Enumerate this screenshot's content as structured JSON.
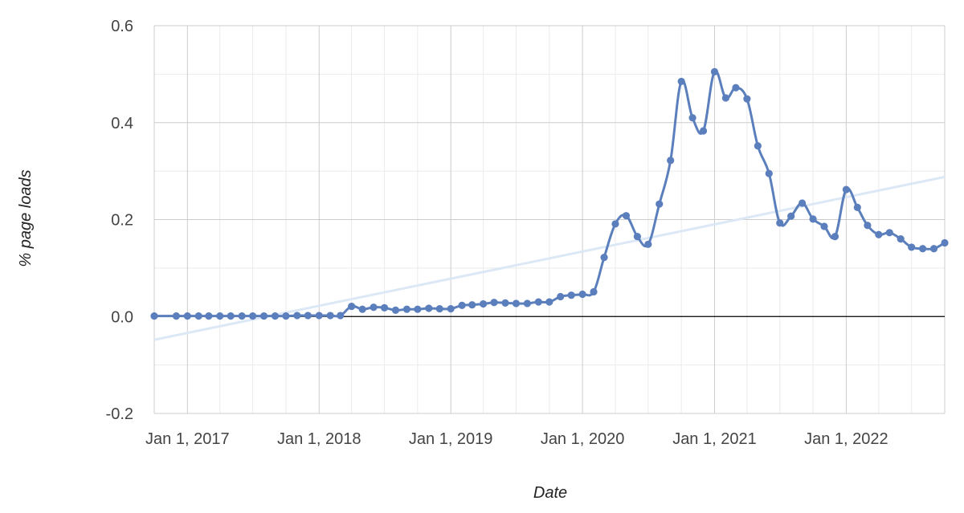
{
  "chart_data": {
    "type": "line",
    "xlabel": "Date",
    "ylabel": "% page loads",
    "xlim": [
      "2016-10-01",
      "2022-10-01"
    ],
    "ylim": [
      -0.2,
      0.6
    ],
    "grid": true,
    "legend": "none",
    "colors": {
      "series": "#5b7fbc",
      "trendline": "#dce8f5",
      "zero_line": "#000000",
      "major_grid": "#cccccc",
      "minor_grid": "#ebebeb"
    },
    "y_ticks": [
      {
        "value": -0.2,
        "label": "-0.2"
      },
      {
        "value": 0.0,
        "label": "0.0"
      },
      {
        "value": 0.2,
        "label": "0.2"
      },
      {
        "value": 0.4,
        "label": "0.4"
      },
      {
        "value": 0.6,
        "label": "0.6"
      }
    ],
    "x_ticks": [
      {
        "value": "2017-01-01",
        "label": "Jan 1, 2017"
      },
      {
        "value": "2018-01-01",
        "label": "Jan 1, 2018"
      },
      {
        "value": "2019-01-01",
        "label": "Jan 1, 2019"
      },
      {
        "value": "2020-01-01",
        "label": "Jan 1, 2020"
      },
      {
        "value": "2021-01-01",
        "label": "Jan 1, 2021"
      },
      {
        "value": "2022-01-01",
        "label": "Jan 1, 2022"
      }
    ],
    "trendline": {
      "x": [
        "2016-10-01",
        "2022-10-01"
      ],
      "y": [
        -0.048,
        0.288
      ]
    },
    "series": [
      {
        "x": [
          "2016-10-01",
          "2016-12-01",
          "2017-01-01",
          "2017-02-01",
          "2017-03-01",
          "2017-04-01",
          "2017-05-01",
          "2017-06-01",
          "2017-07-01",
          "2017-08-01",
          "2017-09-01",
          "2017-10-01",
          "2017-11-01",
          "2017-12-01",
          "2018-01-01",
          "2018-02-01",
          "2018-03-01",
          "2018-04-01",
          "2018-05-01",
          "2018-06-01",
          "2018-07-01",
          "2018-08-01",
          "2018-09-01",
          "2018-10-01",
          "2018-11-01",
          "2018-12-01",
          "2019-01-01",
          "2019-02-01",
          "2019-03-01",
          "2019-04-01",
          "2019-05-01",
          "2019-06-01",
          "2019-07-01",
          "2019-08-01",
          "2019-09-01",
          "2019-10-01",
          "2019-11-01",
          "2019-12-01",
          "2020-01-01",
          "2020-02-01",
          "2020-03-01",
          "2020-04-01",
          "2020-05-01",
          "2020-06-01",
          "2020-07-01",
          "2020-08-01",
          "2020-09-01",
          "2020-10-01",
          "2020-11-01",
          "2020-12-01",
          "2021-01-01",
          "2021-02-01",
          "2021-03-01",
          "2021-04-01",
          "2021-05-01",
          "2021-06-01",
          "2021-07-01",
          "2021-08-01",
          "2021-09-01",
          "2021-10-01",
          "2021-11-01",
          "2021-12-01",
          "2022-01-01",
          "2022-02-01",
          "2022-03-01",
          "2022-04-01",
          "2022-05-01",
          "2022-06-01",
          "2022-07-01",
          "2022-08-01",
          "2022-09-01",
          "2022-10-01"
        ],
        "y": [
          0.001,
          0.001,
          0.001,
          0.001,
          0.001,
          0.001,
          0.001,
          0.001,
          0.001,
          0.001,
          0.001,
          0.001,
          0.002,
          0.002,
          0.002,
          0.002,
          0.002,
          0.021,
          0.015,
          0.019,
          0.018,
          0.013,
          0.015,
          0.015,
          0.017,
          0.016,
          0.016,
          0.023,
          0.024,
          0.026,
          0.029,
          0.028,
          0.027,
          0.027,
          0.03,
          0.03,
          0.041,
          0.044,
          0.046,
          0.051,
          0.122,
          0.191,
          0.208,
          0.165,
          0.149,
          0.232,
          0.322,
          0.485,
          0.41,
          0.383,
          0.505,
          0.451,
          0.472,
          0.449,
          0.352,
          0.295,
          0.193,
          0.207,
          0.234,
          0.201,
          0.186,
          0.165,
          0.262,
          0.225,
          0.188,
          0.169,
          0.173,
          0.16,
          0.143,
          0.14,
          0.14,
          0.152
        ]
      }
    ]
  }
}
